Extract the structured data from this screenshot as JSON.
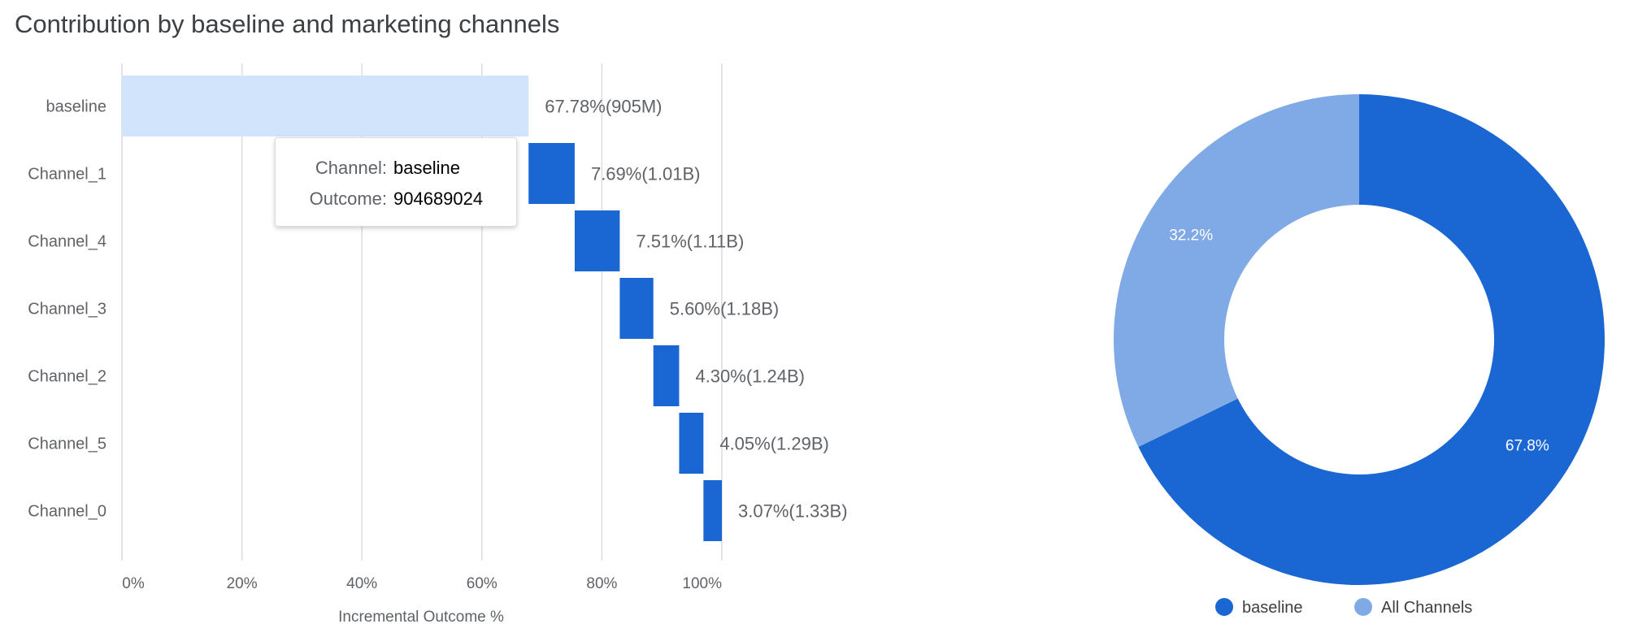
{
  "chart_data": [
    {
      "type": "bar",
      "orientation": "horizontal",
      "subtype": "waterfall",
      "title": "Contribution by baseline and marketing channels",
      "xlabel": "Incremental Outcome %",
      "ylabel": "",
      "xlim": [
        0,
        100
      ],
      "x_ticks": [
        "0%",
        "20%",
        "40%",
        "60%",
        "80%",
        "100%"
      ],
      "grid": true,
      "categories": [
        "baseline",
        "Channel_1",
        "Channel_4",
        "Channel_3",
        "Channel_2",
        "Channel_5",
        "Channel_0"
      ],
      "values": [
        67.78,
        7.69,
        7.51,
        5.6,
        4.3,
        4.05,
        3.07
      ],
      "data_labels": [
        "67.78%(905M)",
        "7.69%(1.01B)",
        "7.51%(1.11B)",
        "5.60%(1.18B)",
        "4.30%(1.24B)",
        "4.05%(1.29B)",
        "3.07%(1.33B)"
      ],
      "colors": {
        "baseline": "#d2e3fc",
        "channel": "#1a66d2"
      },
      "tooltip": {
        "channel_label": "Channel:",
        "channel_value": "baseline",
        "outcome_label": "Outcome:",
        "outcome_value": "904689024"
      }
    },
    {
      "type": "pie",
      "donut": true,
      "categories": [
        "baseline",
        "All Channels"
      ],
      "values": [
        67.8,
        32.2
      ],
      "data_labels": [
        "67.8%",
        "32.2%"
      ],
      "colors": [
        "#1a66d2",
        "#80aae6"
      ],
      "legend_position": "bottom"
    }
  ]
}
